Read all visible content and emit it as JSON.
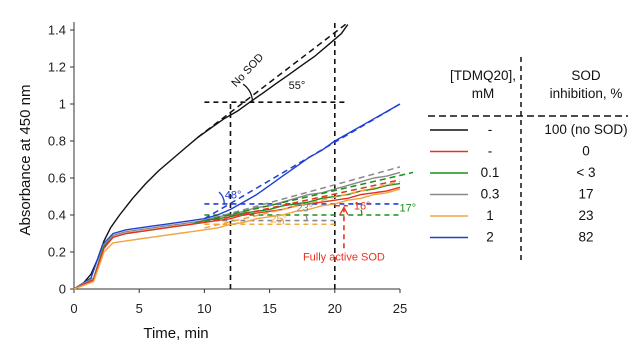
{
  "chart_data": {
    "type": "line",
    "xlabel": "Time, min",
    "ylabel": "Absorbance at 450 nm",
    "xlim": [
      0,
      25
    ],
    "ylim": [
      0,
      1.4
    ],
    "x_ticks": [
      "0",
      "5",
      "10",
      "15",
      "20",
      "25"
    ],
    "y_ticks": [
      "0",
      "0.2",
      "0.4",
      "0.6",
      "0.8",
      "1",
      "1.2",
      "1.4"
    ],
    "grid": false,
    "series": [
      {
        "name": "No SOD",
        "color": "#111111",
        "points": [
          [
            0,
            0
          ],
          [
            0.7,
            0.03
          ],
          [
            1.3,
            0.08
          ],
          [
            1.8,
            0.16
          ],
          [
            2.3,
            0.26
          ],
          [
            2.8,
            0.33
          ],
          [
            3.5,
            0.4
          ],
          [
            4.5,
            0.49
          ],
          [
            5.5,
            0.57
          ],
          [
            6.5,
            0.64
          ],
          [
            7.5,
            0.7
          ],
          [
            8.5,
            0.76
          ],
          [
            9.5,
            0.82
          ],
          [
            10.5,
            0.87
          ],
          [
            11.5,
            0.92
          ],
          [
            12.5,
            0.96
          ],
          [
            13.5,
            1.01
          ],
          [
            14.5,
            1.06
          ],
          [
            15.5,
            1.11
          ],
          [
            16.5,
            1.16
          ],
          [
            17.5,
            1.21
          ],
          [
            18.5,
            1.26
          ],
          [
            19.5,
            1.32
          ],
          [
            20.5,
            1.38
          ],
          [
            21,
            1.43
          ]
        ]
      },
      {
        "name": "[TDMQ20] 2 mM",
        "color": "#1f3fd6",
        "points": [
          [
            0,
            0
          ],
          [
            1.3,
            0.06
          ],
          [
            2.2,
            0.24
          ],
          [
            3,
            0.3
          ],
          [
            4,
            0.32
          ],
          [
            5,
            0.33
          ],
          [
            6,
            0.34
          ],
          [
            7,
            0.35
          ],
          [
            8,
            0.36
          ],
          [
            9,
            0.37
          ],
          [
            10,
            0.38
          ],
          [
            11,
            0.4
          ],
          [
            12,
            0.43
          ],
          [
            13,
            0.47
          ],
          [
            14,
            0.51
          ],
          [
            15,
            0.56
          ],
          [
            16,
            0.61
          ],
          [
            17,
            0.66
          ],
          [
            18,
            0.71
          ],
          [
            19,
            0.75
          ],
          [
            20,
            0.8
          ],
          [
            21,
            0.84
          ],
          [
            22,
            0.88
          ],
          [
            23,
            0.92
          ],
          [
            24,
            0.96
          ],
          [
            25,
            1.0
          ]
        ]
      },
      {
        "name": "[TDMQ20] 0.3 mM",
        "color": "#8a8a8a",
        "points": [
          [
            0,
            0
          ],
          [
            1.5,
            0.06
          ],
          [
            2.3,
            0.24
          ],
          [
            3,
            0.29
          ],
          [
            4,
            0.31
          ],
          [
            5,
            0.32
          ],
          [
            6,
            0.33
          ],
          [
            7,
            0.34
          ],
          [
            8,
            0.35
          ],
          [
            9,
            0.36
          ],
          [
            10,
            0.37
          ],
          [
            11,
            0.39
          ],
          [
            12,
            0.4
          ],
          [
            13,
            0.42
          ],
          [
            14,
            0.44
          ],
          [
            15,
            0.45
          ],
          [
            16,
            0.47
          ],
          [
            17,
            0.49
          ],
          [
            18,
            0.51
          ],
          [
            19,
            0.52
          ],
          [
            20,
            0.54
          ],
          [
            21,
            0.56
          ],
          [
            22,
            0.58
          ],
          [
            23,
            0.6
          ],
          [
            24,
            0.61
          ],
          [
            25,
            0.63
          ]
        ]
      },
      {
        "name": "[TDMQ20] 0.1 mM",
        "color": "#1a8f1a",
        "points": [
          [
            0,
            0
          ],
          [
            1.5,
            0.05
          ],
          [
            2.3,
            0.23
          ],
          [
            3,
            0.28
          ],
          [
            4,
            0.3
          ],
          [
            5,
            0.31
          ],
          [
            6,
            0.32
          ],
          [
            7,
            0.33
          ],
          [
            8,
            0.34
          ],
          [
            9,
            0.35
          ],
          [
            10,
            0.37
          ],
          [
            11,
            0.38
          ],
          [
            12,
            0.39
          ],
          [
            13,
            0.41
          ],
          [
            14,
            0.42
          ],
          [
            15,
            0.43
          ],
          [
            16,
            0.45
          ],
          [
            17,
            0.46
          ],
          [
            18,
            0.47
          ],
          [
            19,
            0.49
          ],
          [
            20,
            0.5
          ],
          [
            21,
            0.51
          ],
          [
            22,
            0.53
          ],
          [
            23,
            0.54
          ],
          [
            24,
            0.56
          ],
          [
            25,
            0.57
          ]
        ]
      },
      {
        "name": "[TDMQ20] -",
        "color": "#e8321e",
        "points": [
          [
            0,
            0
          ],
          [
            1.5,
            0.05
          ],
          [
            2.3,
            0.22
          ],
          [
            3,
            0.28
          ],
          [
            4,
            0.3
          ],
          [
            5,
            0.31
          ],
          [
            6,
            0.32
          ],
          [
            7,
            0.33
          ],
          [
            8,
            0.34
          ],
          [
            9,
            0.35
          ],
          [
            10,
            0.36
          ],
          [
            11,
            0.37
          ],
          [
            12,
            0.38
          ],
          [
            13,
            0.4
          ],
          [
            14,
            0.41
          ],
          [
            15,
            0.42
          ],
          [
            16,
            0.43
          ],
          [
            17,
            0.45
          ],
          [
            18,
            0.46
          ],
          [
            19,
            0.47
          ],
          [
            20,
            0.48
          ],
          [
            21,
            0.49
          ],
          [
            22,
            0.51
          ],
          [
            23,
            0.52
          ],
          [
            24,
            0.53
          ],
          [
            25,
            0.55
          ]
        ]
      },
      {
        "name": "[TDMQ20] 1 mM",
        "color": "#f0a540",
        "points": [
          [
            0,
            0
          ],
          [
            1.5,
            0.04
          ],
          [
            2.3,
            0.2
          ],
          [
            3,
            0.25
          ],
          [
            4,
            0.26
          ],
          [
            5,
            0.27
          ],
          [
            6,
            0.28
          ],
          [
            7,
            0.29
          ],
          [
            8,
            0.3
          ],
          [
            9,
            0.31
          ],
          [
            10,
            0.32
          ],
          [
            11,
            0.33
          ],
          [
            12,
            0.35
          ],
          [
            13,
            0.36
          ],
          [
            14,
            0.38
          ],
          [
            15,
            0.39
          ],
          [
            16,
            0.4
          ],
          [
            17,
            0.42
          ],
          [
            18,
            0.43
          ],
          [
            19,
            0.45
          ],
          [
            20,
            0.46
          ],
          [
            21,
            0.48
          ],
          [
            22,
            0.49
          ],
          [
            23,
            0.51
          ],
          [
            24,
            0.52
          ],
          [
            25,
            0.54
          ]
        ]
      }
    ],
    "fit_lines": [
      {
        "color": "#111111",
        "from": [
          9.5,
          0.82
        ],
        "to": [
          21,
          1.44
        ]
      },
      {
        "color": "#1f3fd6",
        "from": [
          10,
          0.38
        ],
        "to": [
          25,
          1.0
        ]
      },
      {
        "color": "#8a8a8a",
        "from": [
          10,
          0.37
        ],
        "to": [
          25,
          0.66
        ]
      },
      {
        "color": "#1a8f1a",
        "from": [
          10,
          0.37
        ],
        "to": [
          26,
          0.63
        ]
      },
      {
        "color": "#e8321e",
        "from": [
          10,
          0.36
        ],
        "to": [
          25,
          0.59
        ]
      },
      {
        "color": "#f0a540",
        "from": [
          10,
          0.33
        ],
        "to": [
          25,
          0.58
        ]
      }
    ],
    "reference_lines": [
      {
        "kind": "vertical",
        "x": 12,
        "y_from": 0,
        "y_to": 1.01,
        "color": "#111111"
      },
      {
        "kind": "vertical",
        "x": 20,
        "y_from": 0,
        "y_to": 1.44,
        "color": "#111111"
      },
      {
        "kind": "horizontal",
        "y": 1.01,
        "x_from": 10,
        "x_to": 21,
        "color": "#111111"
      },
      {
        "kind": "horizontal",
        "y": 0.46,
        "x_from": 10,
        "x_to": 25,
        "color": "#1f3fd6"
      },
      {
        "kind": "horizontal",
        "y": 0.4,
        "x_from": 10,
        "x_to": 25,
        "color": "#1a8f1a"
      },
      {
        "kind": "horizontal",
        "y": 0.35,
        "x_from": 10,
        "x_to": 20,
        "color": "#f0a540"
      },
      {
        "kind": "horizontal",
        "y": 0.37,
        "x_from": 10,
        "x_to": 20,
        "color": "#8a8a8a"
      },
      {
        "kind": "horizontal",
        "y": 0.45,
        "x_from": 20,
        "x_to": 21,
        "color": "#e8321e"
      },
      {
        "kind": "vertical",
        "x": 20.7,
        "y_from": 0.22,
        "y_to": 0.46,
        "color": "#e8321e"
      }
    ],
    "annotations": [
      {
        "text": "No SOD",
        "x": 13.5,
        "y": 1.17,
        "rotate": -47,
        "color": "#111111"
      },
      {
        "text": "55°",
        "x": 17.1,
        "y": 1.08,
        "rotate": 0,
        "color": "#111111"
      },
      {
        "text": "48°",
        "x": 12.2,
        "y": 0.49,
        "rotate": 0,
        "color": "#1f3fd6"
      },
      {
        "text": "23°",
        "x": 17.7,
        "y": 0.42,
        "rotate": 0,
        "color": "#8a8a8a"
      },
      {
        "text": "25°",
        "x": 15.7,
        "y": 0.36,
        "rotate": 0,
        "color": "#f0a540"
      },
      {
        "text": "16°",
        "x": 22.1,
        "y": 0.43,
        "rotate": 0,
        "color": "#e8321e"
      },
      {
        "text": "17°",
        "x": 25.6,
        "y": 0.42,
        "rotate": 0,
        "color": "#1a8f1a"
      },
      {
        "text": "Fully active SOD",
        "x": 20.7,
        "y": 0.155,
        "rotate": 0,
        "color": "#e8321e"
      }
    ]
  },
  "table": {
    "header_conc": [
      "[TDMQ20],",
      "mM"
    ],
    "header_inh": [
      "SOD",
      "inhibition, %"
    ],
    "rows": [
      {
        "color": "#111111",
        "conc": "-",
        "inhibition": "100 (no SOD)"
      },
      {
        "color": "#e8321e",
        "conc": "-",
        "inhibition": "0"
      },
      {
        "color": "#1a8f1a",
        "conc": "0.1",
        "inhibition": "< 3"
      },
      {
        "color": "#8a8a8a",
        "conc": "0.3",
        "inhibition": "17"
      },
      {
        "color": "#f0a540",
        "conc": "1",
        "inhibition": "23"
      },
      {
        "color": "#1f3fd6",
        "conc": "2",
        "inhibition": "82"
      }
    ]
  }
}
